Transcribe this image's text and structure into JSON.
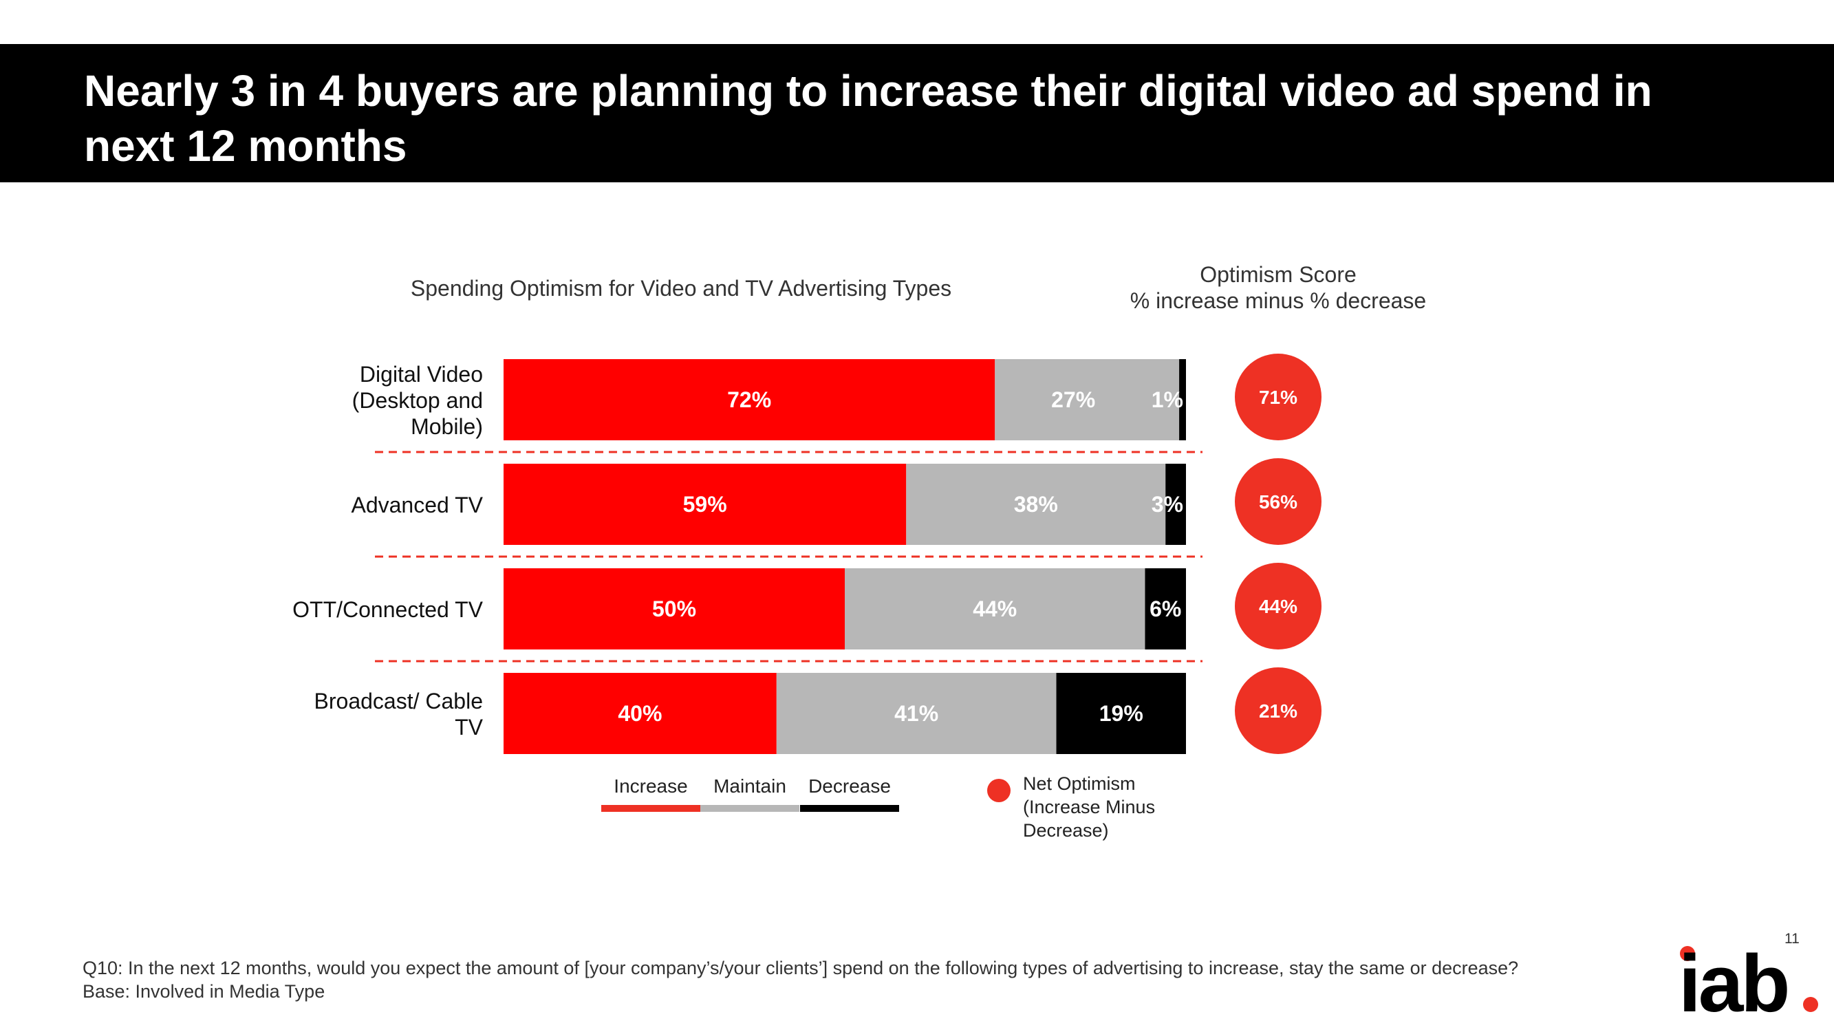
{
  "title": "Nearly 3 in 4 buyers are planning to increase their digital video ad spend in next 12 months",
  "chart_data": {
    "type": "bar",
    "stacked": true,
    "orientation": "horizontal",
    "title": "Spending Optimism for Video and TV Advertising Types",
    "categories": [
      "Digital Video (Desktop and Mobile)",
      "Advanced TV",
      "OTT/Connected TV",
      "Broadcast/ Cable TV"
    ],
    "category_lines": [
      [
        "Digital Video",
        "(Desktop and",
        "Mobile)"
      ],
      [
        "Advanced TV"
      ],
      [
        "OTT/Connected TV"
      ],
      [
        "Broadcast/ Cable",
        "TV"
      ]
    ],
    "series": [
      {
        "name": "Increase",
        "values": [
          72,
          59,
          50,
          40
        ],
        "labels": [
          "72%",
          "59%",
          "50%",
          "40%"
        ],
        "color": "#ff0000"
      },
      {
        "name": "Maintain",
        "values": [
          27,
          38,
          44,
          41
        ],
        "labels": [
          "27%",
          "38%",
          "44%",
          "41%"
        ],
        "color": "#b7b7b7"
      },
      {
        "name": "Decrease",
        "values": [
          1,
          3,
          6,
          19
        ],
        "labels": [
          "1%",
          "3%",
          "6%",
          "19%"
        ],
        "color": "#000000"
      }
    ],
    "score_title_line1": "Optimism Score",
    "score_title_line2": "% increase minus % decrease",
    "optimism_scores": [
      71,
      56,
      44,
      21
    ],
    "optimism_labels": [
      "71%",
      "56%",
      "44%",
      "21%"
    ],
    "score_color": "#ee3124",
    "legend": {
      "items": [
        "Increase",
        "Maintain",
        "Decrease"
      ],
      "net_label_lines": [
        "Net Optimism",
        "(Increase Minus",
        "Decrease)"
      ]
    },
    "xlim": [
      0,
      100
    ]
  },
  "footer": {
    "question": "Q10: In the next 12 months, would you expect the amount of [your company’s/your clients’] spend on the following types of advertising to increase, stay the same or decrease?",
    "base": "Base: Involved in Media Type"
  },
  "page_number": "11",
  "logo_text": "iab",
  "colors": {
    "accent_red": "#ff0000",
    "circle_red": "#ee3124",
    "gray": "#b7b7b7",
    "black": "#000000"
  }
}
